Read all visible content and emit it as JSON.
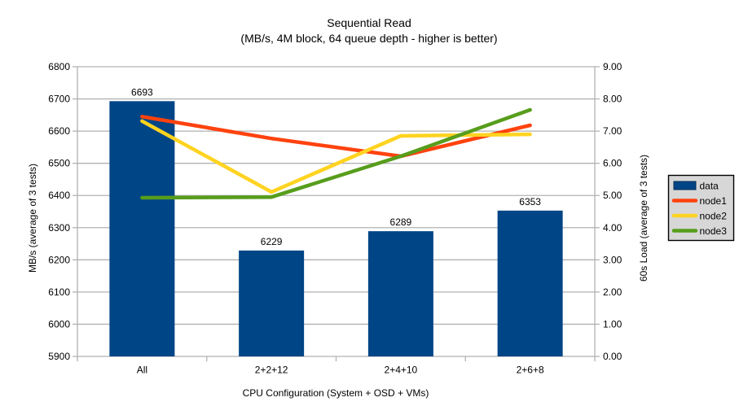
{
  "chart_data": {
    "type": "bar+line",
    "title": "Sequential Read",
    "subtitle": "(MB/s, 4M block, 64 queue depth - higher is better)",
    "categories": [
      "All",
      "2+2+12",
      "2+4+10",
      "2+6+8"
    ],
    "xlabel": "CPU Configuration (System + OSD + VMs)",
    "left_axis": {
      "label": "MB/s (average of 3 tests)",
      "min": 5900,
      "max": 6800,
      "step": 100,
      "decimals": 0
    },
    "right_axis": {
      "label": "60s Load (average of 3 tests)",
      "min": 0,
      "max": 9,
      "step": 1,
      "decimals": 2
    },
    "bar_series": {
      "name": "data",
      "axis": "left",
      "color": "#004586",
      "border_color": "#00305a",
      "values": [
        6693,
        6229,
        6289,
        6353
      ],
      "value_labels": [
        "6693",
        "6229",
        "6289",
        "6353"
      ]
    },
    "line_series": [
      {
        "name": "node1",
        "axis": "right",
        "color": "#ff420e",
        "values": [
          7.45,
          6.77,
          6.22,
          7.18
        ]
      },
      {
        "name": "node2",
        "axis": "right",
        "color": "#ffd320",
        "values": [
          7.31,
          5.11,
          6.85,
          6.9
        ]
      },
      {
        "name": "node3",
        "axis": "right",
        "color": "#579d1c",
        "values": [
          4.93,
          4.95,
          6.22,
          7.66
        ]
      }
    ],
    "legend": {
      "position": "right",
      "background": "#d7d7d7",
      "border_color": "#000000",
      "items": [
        {
          "label": "data",
          "swatch": "rect",
          "color": "#004586"
        },
        {
          "label": "node1",
          "swatch": "line",
          "color": "#ff420e"
        },
        {
          "label": "node2",
          "swatch": "line",
          "color": "#ffd320"
        },
        {
          "label": "node3",
          "swatch": "line",
          "color": "#579d1c"
        }
      ]
    },
    "grid": {
      "horizontal": true,
      "color": "#b2b2b2"
    },
    "background": "#ffffff"
  }
}
